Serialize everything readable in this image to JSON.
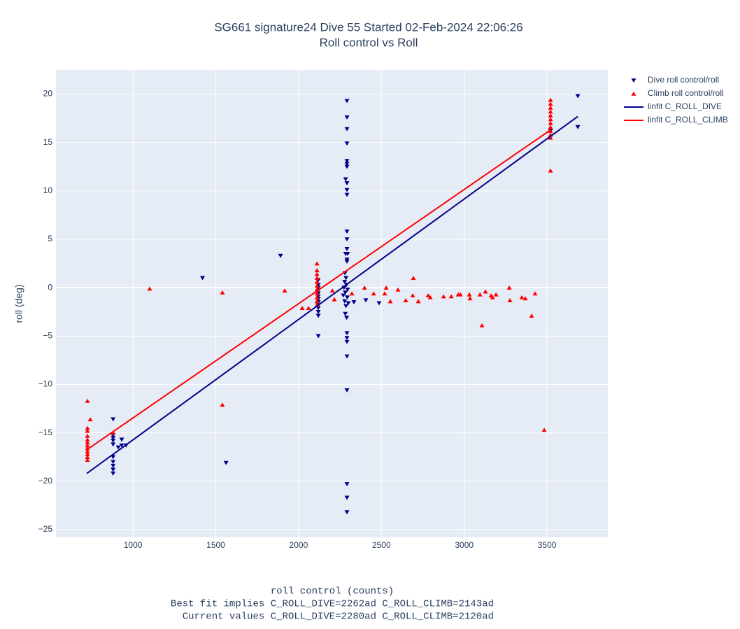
{
  "chart_data": {
    "type": "scatter",
    "title": "SG661 signature24 Dive 55 Started 02-Feb-2024 22:06:26",
    "subtitle": "Roll control vs Roll",
    "xlabel": "roll control (counts)",
    "ylabel": "roll (deg)",
    "annotations": [
      "Best fit implies C_ROLL_DIVE=2262ad C_ROLL_CLIMB=2143ad",
      "Current values C_ROLL_DIVE=2280ad C_ROLL_CLIMB=2120ad"
    ],
    "xlim": [
      535,
      3867
    ],
    "ylim": [
      -25.8,
      22.5
    ],
    "xticks": [
      1000,
      1500,
      2000,
      2500,
      3000,
      3500
    ],
    "yticks": [
      {
        "value": -25,
        "label": "−25"
      },
      {
        "value": -20,
        "label": "−20"
      },
      {
        "value": -15,
        "label": "−15"
      },
      {
        "value": -10,
        "label": "−10"
      },
      {
        "value": -5,
        "label": "−5"
      },
      0,
      5,
      10,
      15,
      20
    ],
    "grid": true,
    "legend": "right",
    "series": [
      {
        "name": "Dive roll control/roll",
        "type": "scatter",
        "marker": "triangle-down",
        "color": "#00008b",
        "x": [
          880,
          880,
          880,
          880,
          880,
          880,
          880,
          880,
          880,
          880,
          911,
          932,
          932,
          958,
          1420,
          1562,
          1891,
          2119,
          2119,
          2119,
          2119,
          2119,
          2119,
          2119,
          2119,
          2119,
          2119,
          2119,
          2119,
          2119,
          2292,
          2292,
          2292,
          2292,
          2292,
          2292,
          2292,
          2284,
          2292,
          2292,
          2292,
          2292,
          2292,
          2292,
          2284,
          2296,
          2292,
          2292,
          2280,
          2286,
          2278,
          2290,
          2274,
          2296,
          2282,
          2270,
          2294,
          2278,
          2300,
          2286,
          2282,
          2290,
          2292,
          2292,
          2292,
          2292,
          2292,
          2292,
          2292,
          2292,
          2334,
          2406,
          2486,
          3521,
          3686,
          3686
        ],
        "y": [
          -13.6,
          -15.2,
          -15.5,
          -15.8,
          -16.2,
          -17.5,
          -18.0,
          -18.4,
          -18.8,
          -19.2,
          -16.5,
          -15.7,
          -16.3,
          -16.3,
          1.0,
          -18.1,
          3.3,
          0.8,
          0.3,
          0,
          -0.3,
          -0.6,
          -0.9,
          -1.2,
          -1.5,
          -1.8,
          -2.1,
          -2.5,
          -2.9,
          -5.0,
          19.3,
          17.6,
          16.4,
          14.9,
          13.1,
          12.8,
          12.5,
          11.2,
          10.8,
          10.1,
          9.6,
          5.8,
          5.0,
          4.0,
          3.5,
          3.5,
          2.9,
          2.7,
          1.5,
          1.0,
          0.6,
          0.3,
          0,
          -0.2,
          -0.5,
          -0.8,
          -1.0,
          -1.4,
          -1.6,
          -1.9,
          -2.7,
          -3.1,
          -4.7,
          -5.2,
          -5.6,
          -7.1,
          -10.6,
          -20.3,
          -21.7,
          -23.2,
          -1.5,
          -1.3,
          -1.6,
          16.2,
          19.8,
          16.6
        ]
      },
      {
        "name": "Climb roll control/roll",
        "type": "scatter",
        "marker": "triangle-up",
        "color": "#ff0000",
        "x": [
          725,
          742,
          725,
          725,
          725,
          725,
          725,
          725,
          725,
          725,
          725,
          725,
          725,
          878,
          1101,
          1540,
          1540,
          1916,
          2022,
          2060,
          2111,
          2111,
          2111,
          2111,
          2111,
          2111,
          2111,
          2111,
          2111,
          2111,
          2111,
          2204,
          2216,
          2322,
          2398,
          2453,
          2520,
          2529,
          2554,
          2600,
          2647,
          2689,
          2693,
          2723,
          2782,
          2795,
          2875,
          2922,
          2964,
          2977,
          3031,
          3035,
          3095,
          3107,
          3128,
          3162,
          3171,
          3192,
          3272,
          3276,
          3348,
          3369,
          3407,
          3428,
          3483,
          3521,
          3521,
          3521,
          3521,
          3521,
          3521,
          3521,
          3521,
          3521,
          3521,
          3521,
          3521
        ],
        "y": [
          -11.7,
          -13.6,
          -14.5,
          -14.8,
          -15.3,
          -15.7,
          -16.0,
          -16.3,
          -16.6,
          -16.9,
          -17.2,
          -17.5,
          -17.8,
          -15.0,
          -0.1,
          -0.5,
          -12.1,
          -0.3,
          -2.1,
          -2.1,
          2.5,
          1.8,
          1.4,
          1.0,
          0.6,
          0.2,
          -0.2,
          -0.6,
          -1.0,
          -1.4,
          -1.8,
          -0.3,
          -1.2,
          -0.6,
          0.0,
          -0.6,
          -0.6,
          0.0,
          -1.4,
          -0.2,
          -1.3,
          -0.8,
          1.0,
          -1.4,
          -0.8,
          -1.0,
          -0.9,
          -0.9,
          -0.7,
          -0.7,
          -0.7,
          -1.1,
          -0.7,
          -3.9,
          -0.4,
          -0.8,
          -1.0,
          -0.7,
          0.0,
          -1.3,
          -1.0,
          -1.1,
          -2.9,
          -0.6,
          -14.7,
          19.4,
          19.0,
          18.6,
          18.2,
          17.8,
          17.4,
          17.0,
          16.6,
          16.2,
          15.8,
          15.5,
          12.1
        ]
      },
      {
        "name": "linfit C_ROLL_DIVE",
        "type": "line",
        "color": "#00008b",
        "x": [
          721,
          3686
        ],
        "y": [
          -19.2,
          17.7
        ]
      },
      {
        "name": "linfit C_ROLL_CLIMB",
        "type": "line",
        "color": "#ff0000",
        "x": [
          734,
          3521
        ],
        "y": [
          -16.6,
          16.3
        ]
      }
    ]
  }
}
